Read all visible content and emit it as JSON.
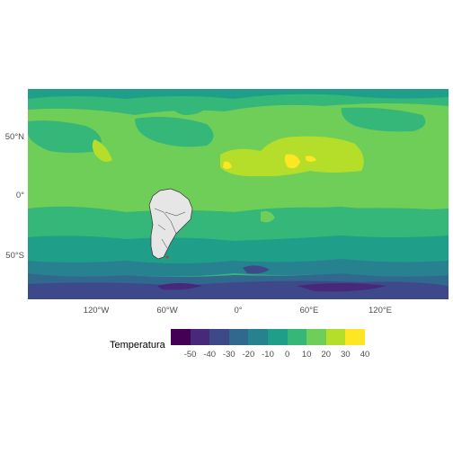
{
  "map": {
    "type": "filled-contour",
    "x_ticks": [
      "120°W",
      "60°W",
      "0°",
      "60°E",
      "120°E"
    ],
    "y_ticks": [
      "50°N",
      "0°",
      "50°S"
    ],
    "highlighted_region": "South America",
    "highlight_color": "#e6e6e6"
  },
  "legend": {
    "title": "Temperatura",
    "labels": [
      "-50",
      "-40",
      "-30",
      "-20",
      "-10",
      "0",
      "10",
      "20",
      "30",
      "40"
    ],
    "colors": [
      "#440154",
      "#482878",
      "#3e4989",
      "#31688e",
      "#26828e",
      "#1f9e89",
      "#35b779",
      "#6ece58",
      "#b5de2b",
      "#fde725"
    ]
  }
}
